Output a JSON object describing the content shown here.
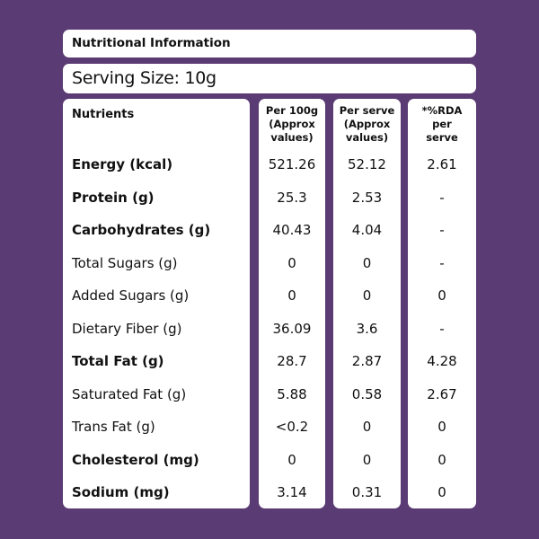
{
  "title": "Nutritional Information",
  "serving_size": "Serving Size: 10g",
  "headers": {
    "nutrients": "Nutrients",
    "per100": [
      "Per 100g",
      "(Approx",
      "values)"
    ],
    "per_serve": [
      "Per serve",
      "(Approx",
      "values)"
    ],
    "rda": [
      "*%RDA",
      "per",
      "serve"
    ]
  },
  "rows": [
    {
      "name": "Energy (kcal)",
      "bold": true,
      "per100": "521.26",
      "per_serve": "52.12",
      "rda": "2.61"
    },
    {
      "name": "Protein (g)",
      "bold": true,
      "per100": "25.3",
      "per_serve": "2.53",
      "rda": "-"
    },
    {
      "name": "Carbohydrates (g)",
      "bold": true,
      "per100": "40.43",
      "per_serve": "4.04",
      "rda": "-"
    },
    {
      "name": "Total Sugars (g)",
      "bold": false,
      "per100": "0",
      "per_serve": "0",
      "rda": "-"
    },
    {
      "name": "Added Sugars (g)",
      "bold": false,
      "per100": "0",
      "per_serve": "0",
      "rda": "0"
    },
    {
      "name": "Dietary Fiber (g)",
      "bold": false,
      "per100": "36.09",
      "per_serve": "3.6",
      "rda": "-"
    },
    {
      "name": "Total Fat (g)",
      "bold": true,
      "per100": "28.7",
      "per_serve": "2.87",
      "rda": "4.28"
    },
    {
      "name": "Saturated Fat (g)",
      "bold": false,
      "per100": "5.88",
      "per_serve": "0.58",
      "rda": "2.67"
    },
    {
      "name": "Trans Fat (g)",
      "bold": false,
      "per100": "<0.2",
      "per_serve": "0",
      "rda": "0"
    },
    {
      "name": "Cholesterol (mg)",
      "bold": true,
      "per100": "0",
      "per_serve": "0",
      "rda": "0"
    },
    {
      "name": "Sodium (mg)",
      "bold": true,
      "per100": "3.14",
      "per_serve": "0.31",
      "rda": "0"
    }
  ],
  "colors": {
    "background": "#5b3b73",
    "panel": "#ffffff",
    "text": "#111111"
  }
}
